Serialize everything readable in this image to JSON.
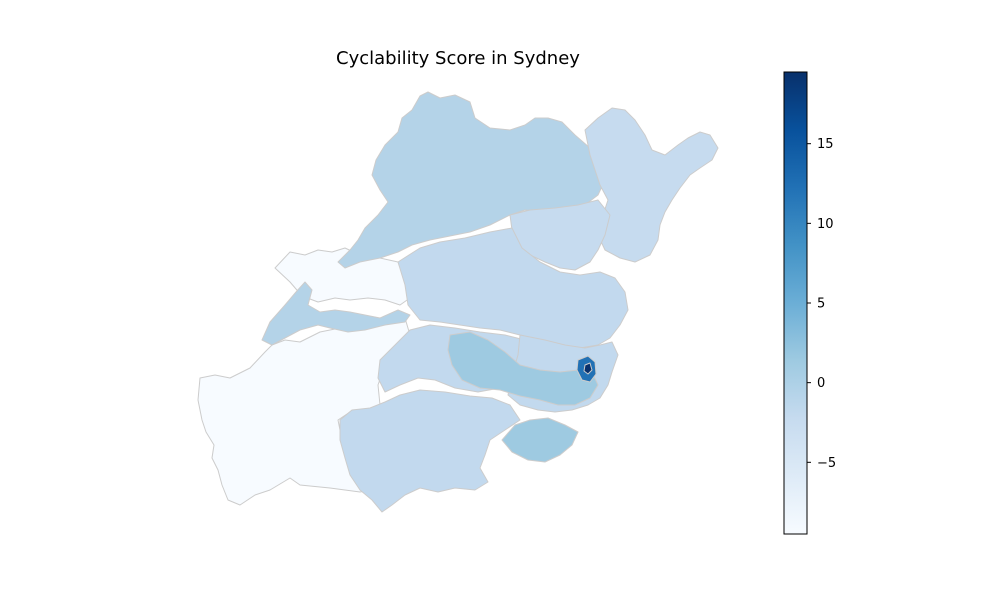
{
  "chart_data": {
    "type": "choropleth",
    "title": "Cyclability Score in Sydney",
    "colormap": "Blues",
    "colorbar": {
      "vmin": -9.5,
      "vmax": 19.5,
      "ticks": [
        -5,
        0,
        5,
        10,
        15
      ],
      "tick_labels": [
        "−5",
        "0",
        "5",
        "10",
        "15"
      ]
    },
    "region_colors": {
      "north_west": "#b4d3e8",
      "north_east": "#c6dbef",
      "central": "#c2d9ee",
      "south_west": "#f7fbff",
      "south_coast_bay": "#9ecae1",
      "inner_city_high": "#2171b5",
      "inner_city_peak": "#08306b",
      "boundary": "#cccccc"
    }
  }
}
